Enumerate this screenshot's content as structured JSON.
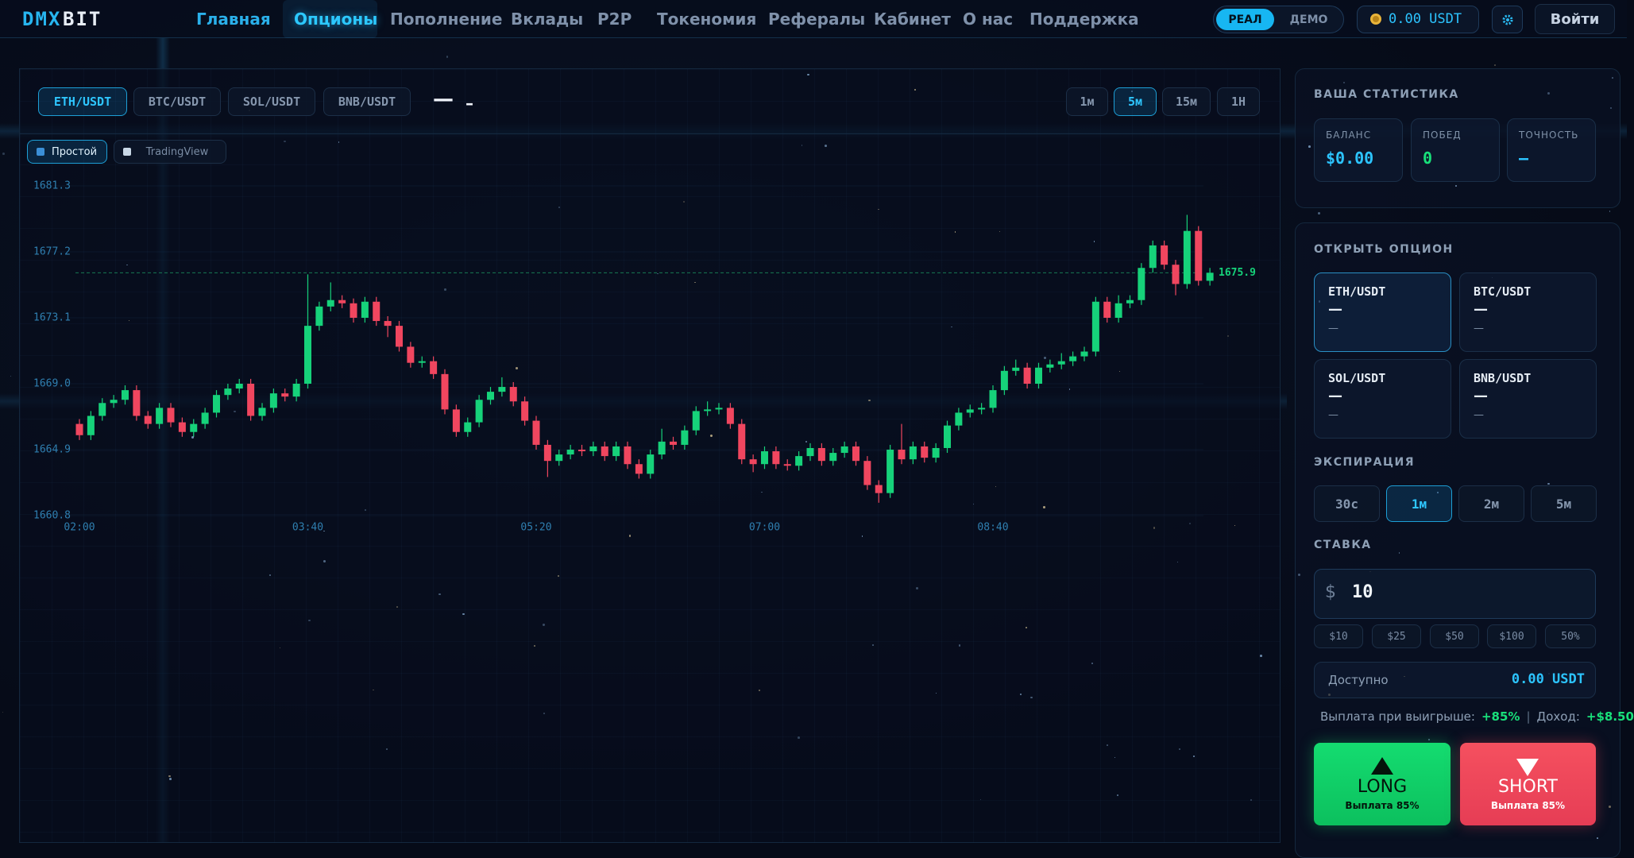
{
  "header": {
    "logo_a": "DMX",
    "logo_b": "BIT",
    "nav": [
      "Главная",
      "Опционы",
      "Пополнение",
      "Вклады",
      "P2P",
      "Токеномия",
      "Рефералы",
      "Кабинет",
      "О нас",
      "Поддержка"
    ],
    "mode": [
      "РЕАЛ",
      "ДЕМО"
    ],
    "balance": "0.00 USDT",
    "login": "Войти"
  },
  "toolbar": {
    "pairs": [
      "ETH/USDT",
      "BTC/USDT",
      "SOL/USDT",
      "BNB/USDT"
    ],
    "price": "—",
    "change": "–",
    "timeframes": [
      "1м",
      "5м",
      "15м",
      "1Н"
    ],
    "views": [
      "Простой",
      "TradingView"
    ]
  },
  "chart_data": {
    "type": "candlestick",
    "categories": [
      "02:00",
      null,
      null,
      null,
      null,
      null,
      null,
      null,
      null,
      null,
      null,
      null,
      null,
      null,
      null,
      null,
      null,
      null,
      null,
      null,
      "03:40",
      null,
      null,
      null,
      null,
      null,
      null,
      null,
      null,
      null,
      null,
      null,
      null,
      null,
      null,
      null,
      null,
      null,
      null,
      null,
      "05:20",
      null,
      null,
      null,
      null,
      null,
      null,
      null,
      null,
      null,
      null,
      null,
      null,
      null,
      null,
      null,
      null,
      null,
      null,
      null,
      "07:00",
      null,
      null,
      null,
      null,
      null,
      null,
      null,
      null,
      null,
      null,
      null,
      null,
      null,
      null,
      null,
      null,
      null,
      null,
      null,
      "08:40",
      null,
      null,
      null,
      null,
      null,
      null,
      null,
      null,
      null,
      null,
      null,
      null,
      null,
      null,
      null,
      null,
      null,
      null,
      null
    ],
    "open": [
      1666.5,
      1665.8,
      1667.0,
      1667.8,
      1668.0,
      1668.6,
      1667.0,
      1666.5,
      1667.5,
      1666.6,
      1666.0,
      1666.5,
      1667.2,
      1668.3,
      1668.7,
      1669.0,
      1667.0,
      1667.5,
      1668.4,
      1668.2,
      1669.0,
      1672.6,
      1673.8,
      1674.2,
      1674.0,
      1673.1,
      1674.1,
      1672.9,
      1672.6,
      1671.3,
      1670.3,
      1670.4,
      1669.6,
      1667.4,
      1666.0,
      1666.6,
      1668.0,
      1668.5,
      1668.8,
      1667.9,
      1666.7,
      1665.2,
      1664.2,
      1664.6,
      1664.9,
      1664.8,
      1665.1,
      1664.5,
      1665.1,
      1664.0,
      1663.4,
      1664.6,
      1665.4,
      1665.2,
      1666.1,
      1667.3,
      1667.4,
      1667.5,
      1666.5,
      1664.3,
      1664.0,
      1664.8,
      1664.0,
      1663.9,
      1664.5,
      1665.0,
      1664.2,
      1664.7,
      1665.1,
      1664.2,
      1662.7,
      1662.2,
      1664.9,
      1664.3,
      1665.1,
      1664.4,
      1665.0,
      1666.4,
      1667.2,
      1667.4,
      1667.5,
      1668.6,
      1669.8,
      1670.0,
      1669.0,
      1670.0,
      1670.2,
      1670.4,
      1670.7,
      1671.0,
      1674.1,
      1673.1,
      1674.0,
      1674.2,
      1676.2,
      1677.6,
      1676.4,
      1675.2,
      1678.5,
      1675.4
    ],
    "high": [
      1666.8,
      1667.3,
      1668.1,
      1668.3,
      1668.9,
      1668.9,
      1667.3,
      1667.8,
      1667.8,
      1666.9,
      1666.8,
      1667.5,
      1668.6,
      1669.0,
      1669.3,
      1669.3,
      1667.8,
      1668.7,
      1668.7,
      1669.3,
      1675.8,
      1674.1,
      1675.3,
      1674.5,
      1674.3,
      1674.4,
      1674.4,
      1673.2,
      1672.9,
      1671.6,
      1670.7,
      1670.7,
      1669.9,
      1667.7,
      1666.9,
      1668.3,
      1668.8,
      1669.4,
      1669.1,
      1668.2,
      1667.0,
      1665.5,
      1664.9,
      1665.2,
      1665.2,
      1665.4,
      1665.4,
      1665.4,
      1665.4,
      1664.3,
      1664.9,
      1666.2,
      1665.7,
      1666.4,
      1667.6,
      1667.9,
      1667.8,
      1667.8,
      1666.8,
      1664.6,
      1665.1,
      1665.1,
      1664.3,
      1664.8,
      1665.3,
      1665.3,
      1665.0,
      1665.4,
      1665.4,
      1664.5,
      1663.0,
      1665.2,
      1666.5,
      1665.4,
      1665.4,
      1665.3,
      1666.7,
      1667.5,
      1667.7,
      1667.8,
      1668.9,
      1670.1,
      1670.5,
      1670.3,
      1670.3,
      1670.5,
      1670.9,
      1671.0,
      1671.3,
      1674.4,
      1674.4,
      1674.5,
      1674.5,
      1676.5,
      1677.9,
      1677.9,
      1676.7,
      1679.5,
      1678.8,
      1676.2
    ],
    "low": [
      1665.5,
      1665.5,
      1666.7,
      1667.5,
      1667.7,
      1666.7,
      1666.2,
      1666.2,
      1666.3,
      1665.7,
      1665.7,
      1666.2,
      1666.9,
      1668.0,
      1668.4,
      1666.7,
      1666.7,
      1667.2,
      1667.9,
      1667.9,
      1668.7,
      1672.3,
      1673.5,
      1673.7,
      1672.8,
      1672.8,
      1672.6,
      1671.9,
      1671.0,
      1670.0,
      1670.0,
      1669.3,
      1667.1,
      1665.7,
      1665.7,
      1666.3,
      1667.7,
      1668.2,
      1667.6,
      1666.4,
      1664.9,
      1663.2,
      1663.9,
      1664.3,
      1664.5,
      1664.5,
      1664.2,
      1664.2,
      1663.7,
      1663.1,
      1663.1,
      1664.3,
      1664.9,
      1664.9,
      1665.8,
      1667.0,
      1667.1,
      1666.2,
      1664.0,
      1663.5,
      1663.7,
      1663.7,
      1663.6,
      1663.6,
      1664.2,
      1663.9,
      1663.9,
      1664.4,
      1663.9,
      1662.4,
      1661.6,
      1661.9,
      1664.0,
      1664.0,
      1664.1,
      1664.1,
      1664.7,
      1666.1,
      1666.9,
      1667.1,
      1667.2,
      1668.3,
      1669.5,
      1668.7,
      1668.7,
      1669.7,
      1669.9,
      1670.1,
      1670.4,
      1670.7,
      1672.8,
      1672.8,
      1673.7,
      1673.9,
      1675.9,
      1676.1,
      1674.5,
      1674.9,
      1675.1,
      1675.1
    ],
    "close": [
      1665.8,
      1667.0,
      1667.8,
      1668.0,
      1668.6,
      1667.0,
      1666.5,
      1667.5,
      1666.6,
      1666.0,
      1666.5,
      1667.2,
      1668.3,
      1668.7,
      1669.0,
      1667.0,
      1667.5,
      1668.4,
      1668.2,
      1669.0,
      1672.6,
      1673.8,
      1674.2,
      1674.0,
      1673.1,
      1674.1,
      1672.9,
      1672.6,
      1671.3,
      1670.3,
      1670.4,
      1669.6,
      1667.4,
      1666.0,
      1666.6,
      1668.0,
      1668.5,
      1668.8,
      1667.9,
      1666.7,
      1665.2,
      1664.2,
      1664.6,
      1664.9,
      1664.8,
      1665.1,
      1664.5,
      1665.1,
      1664.0,
      1663.4,
      1664.6,
      1665.4,
      1665.2,
      1666.1,
      1667.3,
      1667.4,
      1667.5,
      1666.5,
      1664.3,
      1664.0,
      1664.8,
      1664.0,
      1663.9,
      1664.5,
      1665.0,
      1664.2,
      1664.7,
      1665.1,
      1664.2,
      1662.7,
      1662.2,
      1664.9,
      1664.3,
      1665.1,
      1664.4,
      1665.0,
      1666.4,
      1667.2,
      1667.4,
      1667.5,
      1668.6,
      1669.8,
      1670.0,
      1669.0,
      1670.0,
      1670.2,
      1670.4,
      1670.7,
      1671.0,
      1674.1,
      1673.1,
      1674.0,
      1674.2,
      1676.2,
      1677.6,
      1676.4,
      1675.2,
      1678.5,
      1675.4,
      1675.9
    ],
    "up_color": "#16d27a",
    "down_color": "#f0465f",
    "ylim": [
      1660.8,
      1681.3
    ],
    "yticks": [
      1681.3,
      1677.2,
      1673.1,
      {
        "value": 1669,
        "label": "1669.0"
      },
      1664.9,
      1660.8
    ],
    "grid": true,
    "last_price": 1675.9
  },
  "sidebar": {
    "stats_title": "ВАША СТАТИСТИКА",
    "stats": [
      {
        "label": "БАЛАНС",
        "value": "$0.00"
      },
      {
        "label": "ПОБЕД",
        "value": "0"
      },
      {
        "label": "ТОЧНОСТЬ",
        "value": "—"
      }
    ],
    "open_title": "ОТКРЫТЬ ОПЦИОН",
    "pairs": [
      {
        "name": "ETH/USDT",
        "price": "—",
        "change": "—"
      },
      {
        "name": "BTC/USDT",
        "price": "—",
        "change": "—"
      },
      {
        "name": "SOL/USDT",
        "price": "—",
        "change": "—"
      },
      {
        "name": "BNB/USDT",
        "price": "—",
        "change": "—"
      }
    ],
    "expiry_title": "ЭКСПИРАЦИЯ",
    "expiry": [
      "30с",
      "1м",
      "2м",
      "5м"
    ],
    "stake_title": "СТАВКА",
    "currency": "$",
    "stake": "10",
    "quick": [
      "$10",
      "$25",
      "$50",
      "$100",
      "50%"
    ],
    "available_label": "Доступно",
    "available": "0.00 USDT",
    "payout_label": "Выплата при выигрыше:",
    "payout": "+85%",
    "sep": "|",
    "income_label": "Доход:",
    "income": "+$8.50",
    "long": {
      "label": "LONG",
      "sub": "Выплата 85%"
    },
    "short": {
      "label": "SHORT",
      "sub": "Выплата 85%"
    }
  }
}
